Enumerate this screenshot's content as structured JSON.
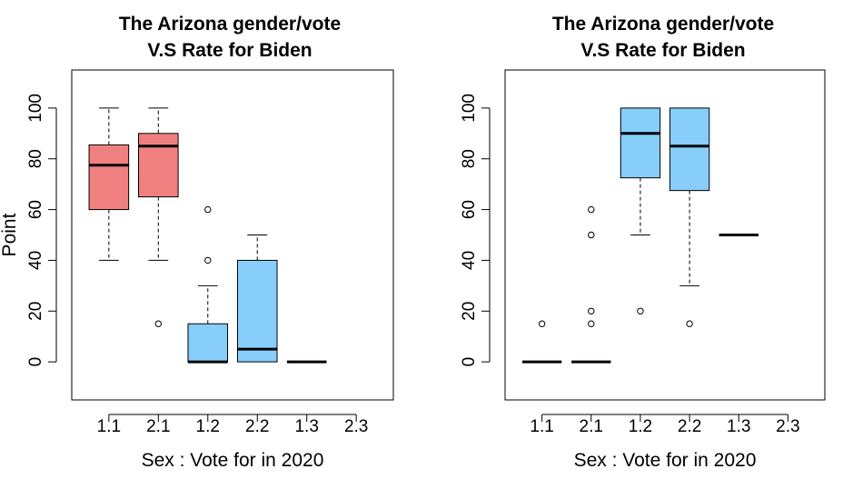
{
  "chart_data": [
    {
      "type": "boxplot",
      "title_lines": [
        "The Arizona gender/vote",
        "V.S Rate for Biden"
      ],
      "xlabel": "Sex : Vote for in 2020",
      "ylabel": "Point",
      "ylim": [
        -15,
        115
      ],
      "y_ticks": [
        0,
        20,
        40,
        60,
        80,
        100
      ],
      "categories": [
        "1.1",
        "2.1",
        "1.2",
        "2.2",
        "1.3",
        "2.3"
      ],
      "box_colors": [
        "#F08080",
        "#F08080",
        "#87CEFA",
        "#87CEFA",
        "#87CEFA",
        "#87CEFA"
      ],
      "boxes": [
        {
          "category": "1.1",
          "whisker_low": 40,
          "q1": 60,
          "median": 77.5,
          "q3": 85.5,
          "whisker_high": 100,
          "outliers": []
        },
        {
          "category": "2.1",
          "whisker_low": 40,
          "q1": 65,
          "median": 85,
          "q3": 90,
          "whisker_high": 100,
          "outliers": [
            15
          ]
        },
        {
          "category": "1.2",
          "whisker_low": 0,
          "q1": 0,
          "median": 0,
          "q3": 15,
          "whisker_high": 30,
          "outliers": [
            40,
            60
          ]
        },
        {
          "category": "2.2",
          "whisker_low": 0,
          "q1": 0,
          "median": 5,
          "q3": 40,
          "whisker_high": 50,
          "outliers": []
        },
        {
          "category": "1.3",
          "whisker_low": 0,
          "q1": 0,
          "median": 0,
          "q3": 0,
          "whisker_high": 0,
          "outliers": []
        },
        {
          "category": "2.3",
          "empty": true
        }
      ]
    },
    {
      "type": "boxplot",
      "title_lines": [
        "The Arizona gender/vote",
        "V.S Rate for Biden"
      ],
      "xlabel": "Sex : Vote for in 2020",
      "ylabel": "",
      "ylim": [
        -15,
        115
      ],
      "y_ticks": [
        0,
        20,
        40,
        60,
        80,
        100
      ],
      "categories": [
        "1.1",
        "2.1",
        "1.2",
        "2.2",
        "1.3",
        "2.3"
      ],
      "box_colors": [
        "#87CEFA",
        "#87CEFA",
        "#87CEFA",
        "#87CEFA",
        "#87CEFA",
        "#87CEFA"
      ],
      "boxes": [
        {
          "category": "1.1",
          "whisker_low": 0,
          "q1": 0,
          "median": 0,
          "q3": 0,
          "whisker_high": 0,
          "outliers": [
            15
          ]
        },
        {
          "category": "2.1",
          "whisker_low": 0,
          "q1": 0,
          "median": 0,
          "q3": 0,
          "whisker_high": 0,
          "outliers": [
            15,
            20,
            50,
            60
          ]
        },
        {
          "category": "1.2",
          "whisker_low": 50,
          "q1": 72.5,
          "median": 90,
          "q3": 100,
          "whisker_high": 100,
          "outliers": [
            20
          ]
        },
        {
          "category": "2.2",
          "whisker_low": 30,
          "q1": 67.5,
          "median": 85,
          "q3": 100,
          "whisker_high": 100,
          "outliers": [
            15
          ]
        },
        {
          "category": "1.3",
          "whisker_low": 50,
          "q1": 50,
          "median": 50,
          "q3": 50,
          "whisker_high": 50,
          "outliers": []
        },
        {
          "category": "2.3",
          "empty": true
        }
      ]
    }
  ]
}
